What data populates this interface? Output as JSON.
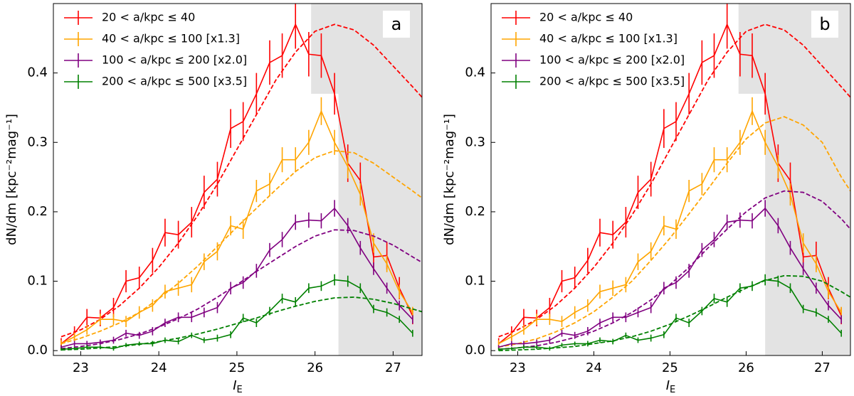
{
  "chart_data": [
    {
      "type": "line",
      "panel_label": "a",
      "xlabel": "I",
      "xlabel_sub": "E",
      "ylabel": "dN/dm [kpc⁻²mag⁻¹]",
      "xlim": [
        22.65,
        27.37
      ],
      "ylim": [
        -0.007,
        0.5
      ],
      "xticks": [
        23,
        24,
        25,
        26,
        27
      ],
      "yticks": [
        {
          "value": 0,
          "label": "0.0"
        },
        0.1,
        0.2,
        0.3,
        0.4
      ],
      "shade": {
        "x_top": 25.95,
        "y_top": 0.37,
        "x_full": 26.3
      },
      "x": [
        22.75,
        22.92,
        23.08,
        23.25,
        23.42,
        23.58,
        23.75,
        23.92,
        24.08,
        24.25,
        24.42,
        24.58,
        24.75,
        24.92,
        25.08,
        25.25,
        25.42,
        25.58,
        25.75,
        25.92,
        26.08,
        26.25,
        26.42,
        26.58,
        26.75,
        26.92,
        27.08,
        27.25
      ],
      "model_x": [
        22.75,
        23,
        23.25,
        23.5,
        23.75,
        24,
        24.25,
        24.5,
        24.75,
        25,
        25.25,
        25.5,
        25.75,
        26,
        26.25,
        26.5,
        26.75,
        27,
        27.25,
        27.37
      ],
      "series": [
        {
          "name": "20 < a/kpc ≤ 40",
          "color": "#ff0000",
          "values": [
            0.01,
            0.025,
            0.048,
            0.047,
            0.062,
            0.1,
            0.105,
            0.13,
            0.17,
            0.167,
            0.185,
            0.228,
            0.247,
            0.32,
            0.33,
            0.37,
            0.415,
            0.425,
            0.47,
            0.427,
            0.425,
            0.37,
            0.27,
            0.245,
            0.135,
            0.137,
            0.09,
            0.05
          ],
          "errors": [
            0.008,
            0.01,
            0.012,
            0.012,
            0.014,
            0.016,
            0.016,
            0.018,
            0.02,
            0.02,
            0.022,
            0.024,
            0.025,
            0.028,
            0.028,
            0.03,
            0.032,
            0.032,
            0.035,
            0.032,
            0.032,
            0.03,
            0.027,
            0.026,
            0.02,
            0.02,
            0.016,
            0.012
          ],
          "model": [
            0.02,
            0.03,
            0.045,
            0.065,
            0.09,
            0.12,
            0.155,
            0.195,
            0.24,
            0.29,
            0.34,
            0.39,
            0.43,
            0.46,
            0.47,
            0.462,
            0.44,
            0.41,
            0.38,
            0.365
          ]
        },
        {
          "name": "40 < a/kpc ≤ 100 [x1.3]",
          "color": "#ffa500",
          "values": [
            0.01,
            0.02,
            0.03,
            0.045,
            0.045,
            0.042,
            0.055,
            0.065,
            0.085,
            0.09,
            0.095,
            0.128,
            0.143,
            0.18,
            0.175,
            0.23,
            0.24,
            0.275,
            0.275,
            0.3,
            0.345,
            0.3,
            0.265,
            0.225,
            0.155,
            0.125,
            0.085,
            0.055
          ],
          "errors": [
            0.005,
            0.006,
            0.007,
            0.008,
            0.008,
            0.008,
            0.009,
            0.009,
            0.01,
            0.011,
            0.011,
            0.012,
            0.013,
            0.014,
            0.014,
            0.016,
            0.016,
            0.018,
            0.018,
            0.018,
            0.02,
            0.018,
            0.017,
            0.016,
            0.014,
            0.012,
            0.01,
            0.008
          ],
          "model": [
            0.01,
            0.018,
            0.028,
            0.04,
            0.055,
            0.075,
            0.097,
            0.122,
            0.15,
            0.178,
            0.205,
            0.232,
            0.258,
            0.278,
            0.288,
            0.285,
            0.27,
            0.25,
            0.23,
            0.22
          ]
        },
        {
          "name": "100 < a/kpc ≤ 200 [x2.0]",
          "color": "#800080",
          "values": [
            0.005,
            0.01,
            0.01,
            0.012,
            0.015,
            0.025,
            0.022,
            0.028,
            0.04,
            0.048,
            0.048,
            0.055,
            0.062,
            0.09,
            0.098,
            0.115,
            0.145,
            0.16,
            0.185,
            0.188,
            0.187,
            0.205,
            0.18,
            0.148,
            0.118,
            0.09,
            0.065,
            0.045
          ],
          "errors": [
            0.003,
            0.004,
            0.004,
            0.004,
            0.005,
            0.005,
            0.005,
            0.006,
            0.006,
            0.007,
            0.007,
            0.007,
            0.008,
            0.009,
            0.009,
            0.01,
            0.01,
            0.011,
            0.011,
            0.011,
            0.011,
            0.012,
            0.011,
            0.01,
            0.009,
            0.008,
            0.007,
            0.006
          ],
          "model": [
            0.003,
            0.006,
            0.01,
            0.016,
            0.024,
            0.034,
            0.046,
            0.06,
            0.077,
            0.095,
            0.114,
            0.132,
            0.15,
            0.165,
            0.174,
            0.173,
            0.165,
            0.152,
            0.135,
            0.127
          ]
        },
        {
          "name": "200 < a/kpc ≤ 500 [x3.5]",
          "color": "#008000",
          "values": [
            0.002,
            0.003,
            0.005,
            0.005,
            0.003,
            0.008,
            0.01,
            0.01,
            0.015,
            0.013,
            0.022,
            0.015,
            0.018,
            0.023,
            0.047,
            0.04,
            0.057,
            0.075,
            0.07,
            0.09,
            0.093,
            0.102,
            0.1,
            0.09,
            0.06,
            0.055,
            0.045,
            0.025
          ],
          "errors": [
            0.002,
            0.002,
            0.003,
            0.003,
            0.003,
            0.003,
            0.003,
            0.004,
            0.004,
            0.004,
            0.004,
            0.004,
            0.005,
            0.005,
            0.006,
            0.006,
            0.006,
            0.007,
            0.007,
            0.007,
            0.007,
            0.008,
            0.008,
            0.007,
            0.006,
            0.006,
            0.005,
            0.005
          ],
          "model": [
            0.001,
            0.002,
            0.004,
            0.006,
            0.009,
            0.013,
            0.018,
            0.024,
            0.031,
            0.039,
            0.047,
            0.056,
            0.064,
            0.071,
            0.076,
            0.077,
            0.074,
            0.068,
            0.06,
            0.056
          ]
        }
      ]
    },
    {
      "type": "line",
      "panel_label": "b",
      "xlabel": "I",
      "xlabel_sub": "E",
      "ylabel": "dN/dm [kpc⁻²mag⁻¹]",
      "xlim": [
        22.65,
        27.37
      ],
      "ylim": [
        -0.007,
        0.5
      ],
      "xticks": [
        23,
        24,
        25,
        26,
        27
      ],
      "yticks": [
        {
          "value": 0,
          "label": "0.0"
        },
        0.1,
        0.2,
        0.3,
        0.4
      ],
      "shade": {
        "x_top": 25.9,
        "y_top": 0.37,
        "x_full": 26.25
      },
      "x": [
        22.75,
        22.92,
        23.08,
        23.25,
        23.42,
        23.58,
        23.75,
        23.92,
        24.08,
        24.25,
        24.42,
        24.58,
        24.75,
        24.92,
        25.08,
        25.25,
        25.42,
        25.58,
        25.75,
        25.92,
        26.08,
        26.25,
        26.42,
        26.58,
        26.75,
        26.92,
        27.08,
        27.25
      ],
      "model_x": [
        22.75,
        23,
        23.25,
        23.5,
        23.75,
        24,
        24.25,
        24.5,
        24.75,
        25,
        25.25,
        25.5,
        25.75,
        26,
        26.25,
        26.5,
        26.75,
        27,
        27.25,
        27.37
      ],
      "series": [
        {
          "name": "20 < a/kpc ≤ 40",
          "color": "#ff0000",
          "values": [
            0.01,
            0.025,
            0.048,
            0.047,
            0.062,
            0.1,
            0.105,
            0.13,
            0.17,
            0.167,
            0.185,
            0.228,
            0.247,
            0.32,
            0.33,
            0.37,
            0.415,
            0.425,
            0.47,
            0.427,
            0.425,
            0.37,
            0.27,
            0.245,
            0.135,
            0.137,
            0.09,
            0.05
          ],
          "errors": [
            0.008,
            0.01,
            0.012,
            0.012,
            0.014,
            0.016,
            0.016,
            0.018,
            0.02,
            0.02,
            0.022,
            0.024,
            0.025,
            0.028,
            0.028,
            0.03,
            0.032,
            0.032,
            0.035,
            0.032,
            0.032,
            0.03,
            0.027,
            0.026,
            0.02,
            0.02,
            0.016,
            0.012
          ],
          "model": [
            0.02,
            0.03,
            0.045,
            0.065,
            0.09,
            0.12,
            0.155,
            0.195,
            0.24,
            0.29,
            0.34,
            0.39,
            0.43,
            0.46,
            0.47,
            0.462,
            0.44,
            0.41,
            0.38,
            0.365
          ]
        },
        {
          "name": "40 < a/kpc ≤ 100 [x1.3]",
          "color": "#ffa500",
          "values": [
            0.01,
            0.02,
            0.03,
            0.045,
            0.045,
            0.042,
            0.055,
            0.065,
            0.085,
            0.09,
            0.095,
            0.128,
            0.143,
            0.18,
            0.175,
            0.23,
            0.24,
            0.275,
            0.275,
            0.3,
            0.345,
            0.3,
            0.265,
            0.225,
            0.155,
            0.125,
            0.085,
            0.055
          ],
          "errors": [
            0.005,
            0.006,
            0.007,
            0.008,
            0.008,
            0.008,
            0.009,
            0.009,
            0.01,
            0.011,
            0.011,
            0.012,
            0.013,
            0.014,
            0.014,
            0.016,
            0.016,
            0.018,
            0.018,
            0.018,
            0.02,
            0.018,
            0.017,
            0.016,
            0.014,
            0.012,
            0.01,
            0.008
          ],
          "model": [
            0.005,
            0.01,
            0.017,
            0.027,
            0.04,
            0.056,
            0.077,
            0.1,
            0.13,
            0.162,
            0.197,
            0.233,
            0.27,
            0.305,
            0.328,
            0.337,
            0.325,
            0.3,
            0.25,
            0.23
          ]
        },
        {
          "name": "100 < a/kpc ≤ 200 [x2.0]",
          "color": "#800080",
          "values": [
            0.005,
            0.01,
            0.01,
            0.012,
            0.015,
            0.025,
            0.022,
            0.028,
            0.04,
            0.048,
            0.048,
            0.055,
            0.062,
            0.09,
            0.098,
            0.115,
            0.145,
            0.16,
            0.185,
            0.188,
            0.187,
            0.205,
            0.18,
            0.148,
            0.118,
            0.09,
            0.065,
            0.045
          ],
          "errors": [
            0.003,
            0.004,
            0.004,
            0.004,
            0.005,
            0.005,
            0.005,
            0.006,
            0.006,
            0.007,
            0.007,
            0.007,
            0.008,
            0.009,
            0.009,
            0.01,
            0.01,
            0.011,
            0.011,
            0.011,
            0.011,
            0.012,
            0.011,
            0.01,
            0.009,
            0.008,
            0.007,
            0.006
          ],
          "model": [
            0.002,
            0.004,
            0.007,
            0.012,
            0.019,
            0.028,
            0.04,
            0.055,
            0.073,
            0.095,
            0.12,
            0.148,
            0.175,
            0.2,
            0.22,
            0.23,
            0.228,
            0.215,
            0.19,
            0.175
          ]
        },
        {
          "name": "200 < a/kpc ≤ 500 [x3.5]",
          "color": "#008000",
          "values": [
            0.002,
            0.003,
            0.005,
            0.005,
            0.003,
            0.008,
            0.01,
            0.01,
            0.015,
            0.013,
            0.022,
            0.015,
            0.018,
            0.023,
            0.047,
            0.04,
            0.057,
            0.075,
            0.07,
            0.09,
            0.093,
            0.102,
            0.1,
            0.09,
            0.06,
            0.055,
            0.045,
            0.025
          ],
          "errors": [
            0.002,
            0.002,
            0.003,
            0.003,
            0.003,
            0.003,
            0.003,
            0.004,
            0.004,
            0.004,
            0.004,
            0.004,
            0.005,
            0.005,
            0.006,
            0.006,
            0.006,
            0.007,
            0.007,
            0.007,
            0.007,
            0.008,
            0.008,
            0.007,
            0.006,
            0.006,
            0.005,
            0.005
          ],
          "model": [
            0,
            0.001,
            0.002,
            0.004,
            0.006,
            0.01,
            0.014,
            0.02,
            0.028,
            0.038,
            0.05,
            0.063,
            0.077,
            0.09,
            0.101,
            0.108,
            0.107,
            0.1,
            0.085,
            0.077
          ]
        }
      ]
    }
  ]
}
